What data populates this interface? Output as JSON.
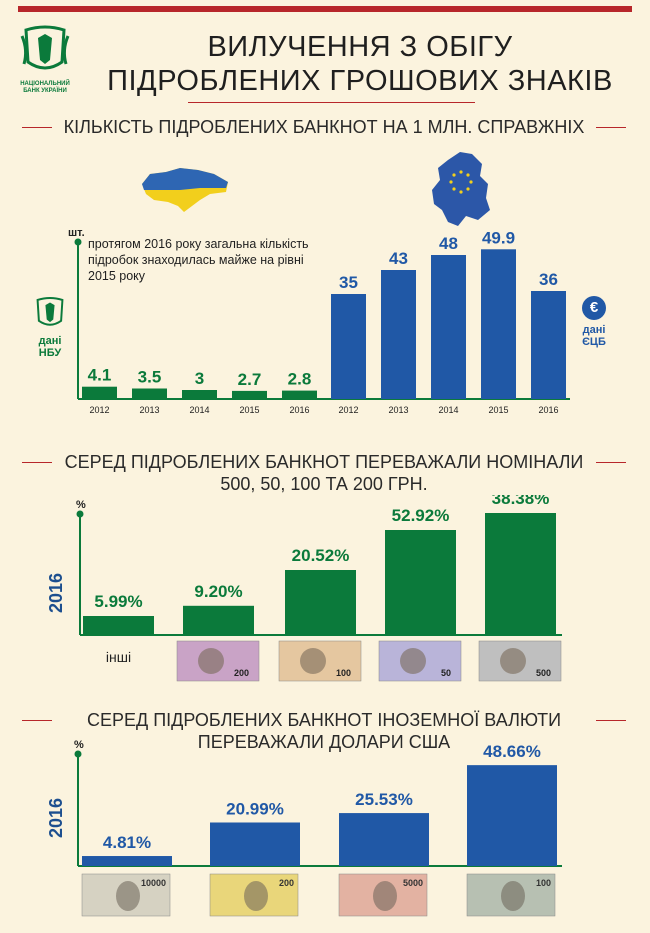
{
  "colors": {
    "green": "#0b7a3b",
    "blue": "#2058a6",
    "red": "#b7262a",
    "bg": "#fbf3de"
  },
  "header": {
    "logo_text": "НАЦІОНАЛЬНИЙ БАНК УКРАЇНИ",
    "title_line1": "ВИЛУЧЕННЯ З ОБІГУ",
    "title_line2": "ПІДРОБЛЕНИХ ГРОШОВИХ ЗНАКІВ"
  },
  "section1": {
    "title": "КІЛЬКІСТЬ ПІДРОБЛЕНИХ БАНКНОТ НА 1 МЛН. СПРАВЖНІХ",
    "unit": "шт.",
    "note": "протягом 2016 року загальна кількість підробок знаходилась майже на рівні 2015 року",
    "left_source": "дані НБУ",
    "right_source": "дані ЄЦБ",
    "euro_symbol": "€"
  },
  "section2": {
    "title_line1": "СЕРЕД ПІДРОБЛЕНИХ БАНКНОТ ПЕРЕВАЖАЛИ НОМІНАЛИ",
    "title_line2": "500, 50, 100 ТА 200 ГРН.",
    "unit": "%",
    "year": "2016",
    "other_label": "інші",
    "note_labels": [
      "200",
      "100",
      "50",
      "500"
    ]
  },
  "section3": {
    "title_line1": "СЕРЕД ПІДРОБЛЕНИХ БАНКНОТ ІНОЗЕМНОЇ ВАЛЮТИ",
    "title_line2": "ПЕРЕВАЖАЛИ ДОЛАРИ США",
    "unit": "%",
    "year": "2016",
    "note_labels": [
      "10000",
      "200",
      "5000",
      "100"
    ]
  },
  "chart_data": [
    {
      "type": "bar",
      "title": "КІЛЬКІСТЬ ПІДРОБЛЕНИХ БАНКНОТ НА 1 МЛН. СПРАВЖНІХ",
      "ylabel": "шт.",
      "ylim": [
        0,
        50
      ],
      "series": [
        {
          "name": "дані НБУ",
          "color": "#0b7a3b",
          "categories": [
            "2012",
            "2013",
            "2014",
            "2015",
            "2016"
          ],
          "values": [
            4.1,
            3.5,
            3,
            2.7,
            2.8
          ],
          "labels": [
            "4.1",
            "3.5",
            "3",
            "2.7",
            "2.8"
          ]
        },
        {
          "name": "дані ЄЦБ",
          "color": "#2058a6",
          "categories": [
            "2012",
            "2013",
            "2014",
            "2015",
            "2016"
          ],
          "values": [
            35,
            43,
            48,
            49.9,
            36
          ],
          "labels": [
            "35",
            "43",
            "48",
            "49.9",
            "36"
          ]
        }
      ]
    },
    {
      "type": "bar",
      "title": "СЕРЕД ПІДРОБЛЕНИХ БАНКНОТ ПЕРЕВАЖАЛИ НОМІНАЛИ 500, 50, 100 ТА 200 ГРН.",
      "ylabel": "%",
      "categories": [
        "інші",
        "200",
        "100",
        "50",
        "500"
      ],
      "values": [
        5.99,
        9.2,
        20.52,
        52.92,
        38.38
      ],
      "labels": [
        "5.99%",
        "9.20%",
        "20.52%",
        "52.92%",
        "38.38%"
      ],
      "bar_levels": [
        0.095,
        0.146,
        0.325,
        0.525,
        0.61
      ],
      "color": "#0b7a3b"
    },
    {
      "type": "bar",
      "title": "СЕРЕД ПІДРОБЛЕНИХ БАНКНОТ ІНОЗЕМНОЇ ВАЛЮТИ ПЕРЕВАЖАЛИ ДОЛАРИ США",
      "ylabel": "%",
      "categories": [
        "JPY",
        "EUR",
        "RUB",
        "USD"
      ],
      "values": [
        4.81,
        20.99,
        25.53,
        48.66
      ],
      "labels": [
        "4.81%",
        "20.99%",
        "25.53%",
        "48.66%"
      ],
      "color": "#2058a6",
      "ylim": [
        0,
        55
      ]
    }
  ]
}
